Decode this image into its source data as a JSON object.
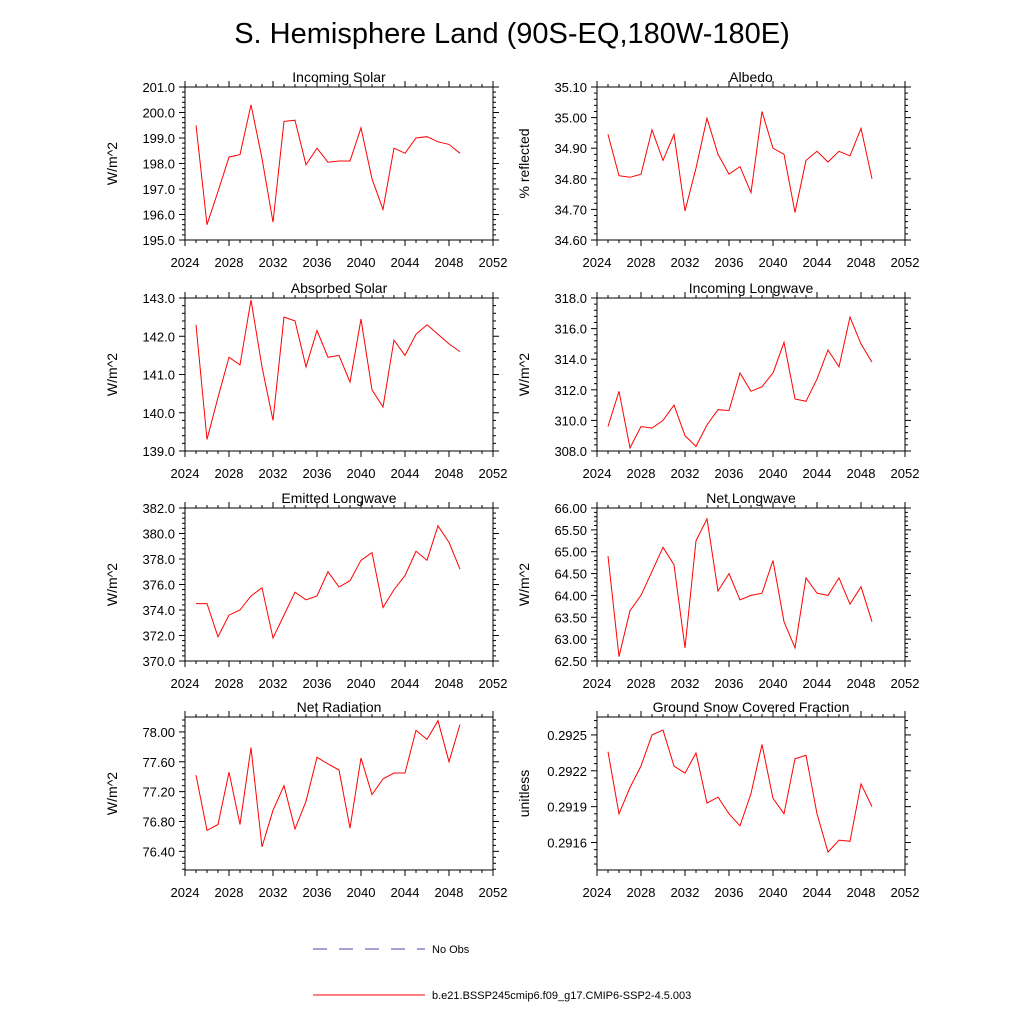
{
  "title": "S. Hemisphere Land (90S-EQ,180W-180E)",
  "legend": {
    "obs_label": "No Obs",
    "obs_color": "#4a4aa8",
    "model_label": "b.e21.BSSP245cmip6.f09_g17.CMIP6-SSP2-4.5.003",
    "model_color": "#ff0000"
  },
  "chart_data": [
    {
      "type": "line",
      "title": "Incoming Solar",
      "ylabel": "W/m^2",
      "xlim": [
        2024,
        2052
      ],
      "ylim": [
        195,
        201
      ],
      "xticks": [
        2024,
        2028,
        2032,
        2036,
        2040,
        2044,
        2048,
        2052
      ],
      "yticks": [
        195.0,
        196.0,
        197.0,
        198.0,
        199.0,
        200.0,
        201.0
      ],
      "ytick_labels": [
        "195.0",
        "196.0",
        "197.0",
        "198.0",
        "199.0",
        "200.0",
        "201.0"
      ],
      "x": [
        2025,
        2026,
        2027,
        2028,
        2029,
        2030,
        2031,
        2032,
        2033,
        2034,
        2035,
        2036,
        2037,
        2038,
        2039,
        2040,
        2041,
        2042,
        2043,
        2044,
        2045,
        2046,
        2047,
        2048,
        2049
      ],
      "values": [
        199.5,
        195.6,
        196.9,
        198.25,
        198.35,
        200.3,
        198.2,
        195.7,
        199.65,
        199.7,
        197.95,
        198.6,
        198.05,
        198.1,
        198.1,
        199.4,
        197.4,
        196.2,
        198.6,
        198.4,
        199.0,
        199.05,
        198.85,
        198.75,
        198.4
      ]
    },
    {
      "type": "line",
      "title": "Albedo",
      "ylabel": "% reflected",
      "xlim": [
        2024,
        2052
      ],
      "ylim": [
        34.6,
        35.1
      ],
      "xticks": [
        2024,
        2028,
        2032,
        2036,
        2040,
        2044,
        2048,
        2052
      ],
      "yticks": [
        34.6,
        34.7,
        34.8,
        34.9,
        35.0,
        35.1
      ],
      "ytick_labels": [
        "34.60",
        "34.70",
        "34.80",
        "34.90",
        "35.00",
        "35.10"
      ],
      "x": [
        2025,
        2026,
        2027,
        2028,
        2029,
        2030,
        2031,
        2032,
        2033,
        2034,
        2035,
        2036,
        2037,
        2038,
        2039,
        2040,
        2041,
        2042,
        2043,
        2044,
        2045,
        2046,
        2047,
        2048,
        2049
      ],
      "values": [
        34.945,
        34.81,
        34.805,
        34.815,
        34.96,
        34.86,
        34.945,
        34.695,
        34.835,
        34.998,
        34.88,
        34.815,
        34.84,
        34.755,
        35.02,
        34.9,
        34.88,
        34.69,
        34.86,
        34.89,
        34.855,
        34.89,
        34.875,
        34.965,
        34.8
      ]
    },
    {
      "type": "line",
      "title": "Absorbed Solar",
      "ylabel": "W/m^2",
      "xlim": [
        2024,
        2052
      ],
      "ylim": [
        139,
        143
      ],
      "xticks": [
        2024,
        2028,
        2032,
        2036,
        2040,
        2044,
        2048,
        2052
      ],
      "yticks": [
        139.0,
        140.0,
        141.0,
        142.0,
        143.0
      ],
      "ytick_labels": [
        "139.0",
        "140.0",
        "141.0",
        "142.0",
        "143.0"
      ],
      "x": [
        2025,
        2026,
        2027,
        2028,
        2029,
        2030,
        2031,
        2032,
        2033,
        2034,
        2035,
        2036,
        2037,
        2038,
        2039,
        2040,
        2041,
        2042,
        2043,
        2044,
        2045,
        2046,
        2047,
        2048,
        2049
      ],
      "values": [
        142.3,
        139.3,
        140.4,
        141.45,
        141.25,
        142.95,
        141.2,
        139.8,
        142.5,
        142.4,
        141.2,
        142.15,
        141.45,
        141.5,
        140.8,
        142.45,
        140.6,
        140.15,
        141.9,
        141.5,
        142.05,
        142.3,
        142.05,
        141.8,
        141.6
      ]
    },
    {
      "type": "line",
      "title": "Incoming Longwave",
      "ylabel": "W/m^2",
      "xlim": [
        2024,
        2052
      ],
      "ylim": [
        308,
        318
      ],
      "xticks": [
        2024,
        2028,
        2032,
        2036,
        2040,
        2044,
        2048,
        2052
      ],
      "yticks": [
        308,
        310,
        312,
        314,
        316,
        318
      ],
      "ytick_labels": [
        "308.0",
        "310.0",
        "312.0",
        "314.0",
        "316.0",
        "318.0"
      ],
      "x": [
        2025,
        2026,
        2027,
        2028,
        2029,
        2030,
        2031,
        2032,
        2033,
        2034,
        2035,
        2036,
        2037,
        2038,
        2039,
        2040,
        2041,
        2042,
        2043,
        2044,
        2045,
        2046,
        2047,
        2048,
        2049
      ],
      "values": [
        309.6,
        311.9,
        308.2,
        309.6,
        309.5,
        310.0,
        311.0,
        309.0,
        308.3,
        309.7,
        310.7,
        310.65,
        313.1,
        311.9,
        312.2,
        313.1,
        315.1,
        311.4,
        311.25,
        312.7,
        314.6,
        313.5,
        316.75,
        315.0,
        313.8
      ]
    },
    {
      "type": "line",
      "title": "Emitted Longwave",
      "ylabel": "W/m^2",
      "xlim": [
        2024,
        2052
      ],
      "ylim": [
        370,
        382
      ],
      "xticks": [
        2024,
        2028,
        2032,
        2036,
        2040,
        2044,
        2048,
        2052
      ],
      "yticks": [
        370,
        372,
        374,
        376,
        378,
        380,
        382
      ],
      "ytick_labels": [
        "370.0",
        "372.0",
        "374.0",
        "376.0",
        "378.0",
        "380.0",
        "382.0"
      ],
      "x": [
        2025,
        2026,
        2027,
        2028,
        2029,
        2030,
        2031,
        2032,
        2033,
        2034,
        2035,
        2036,
        2037,
        2038,
        2039,
        2040,
        2041,
        2042,
        2043,
        2044,
        2045,
        2046,
        2047,
        2048,
        2049
      ],
      "values": [
        374.5,
        374.5,
        371.9,
        373.6,
        374.0,
        375.1,
        375.75,
        371.8,
        373.6,
        375.4,
        374.8,
        375.1,
        377.0,
        375.8,
        376.3,
        377.9,
        378.5,
        374.2,
        375.6,
        376.7,
        378.6,
        377.9,
        380.6,
        379.3,
        377.2
      ]
    },
    {
      "type": "line",
      "title": "Net Longwave",
      "ylabel": "W/m^2",
      "xlim": [
        2024,
        2052
      ],
      "ylim": [
        62.5,
        66.0
      ],
      "xticks": [
        2024,
        2028,
        2032,
        2036,
        2040,
        2044,
        2048,
        2052
      ],
      "yticks": [
        62.5,
        63.0,
        63.5,
        64.0,
        64.5,
        65.0,
        65.5,
        66.0
      ],
      "ytick_labels": [
        "62.50",
        "63.00",
        "63.50",
        "64.00",
        "64.50",
        "65.00",
        "65.50",
        "66.00"
      ],
      "x": [
        2025,
        2026,
        2027,
        2028,
        2029,
        2030,
        2031,
        2032,
        2033,
        2034,
        2035,
        2036,
        2037,
        2038,
        2039,
        2040,
        2041,
        2042,
        2043,
        2044,
        2045,
        2046,
        2047,
        2048,
        2049
      ],
      "values": [
        64.9,
        62.6,
        63.65,
        64.0,
        64.55,
        65.1,
        64.7,
        62.8,
        65.25,
        65.75,
        64.1,
        64.5,
        63.9,
        64.0,
        64.05,
        64.8,
        63.4,
        62.8,
        64.4,
        64.05,
        64.0,
        64.4,
        63.8,
        64.2,
        63.4
      ]
    },
    {
      "type": "line",
      "title": "Net Radiation",
      "ylabel": "W/m^2",
      "xlim": [
        2024,
        2052
      ],
      "ylim": [
        76.15,
        78.2
      ],
      "xticks": [
        2024,
        2028,
        2032,
        2036,
        2040,
        2044,
        2048,
        2052
      ],
      "yticks": [
        76.4,
        76.8,
        77.2,
        77.6,
        78.0
      ],
      "ytick_labels": [
        "76.40",
        "76.80",
        "77.20",
        "77.60",
        "78.00"
      ],
      "x": [
        2025,
        2026,
        2027,
        2028,
        2029,
        2030,
        2031,
        2032,
        2033,
        2034,
        2035,
        2036,
        2037,
        2038,
        2039,
        2040,
        2041,
        2042,
        2043,
        2044,
        2045,
        2046,
        2047,
        2048,
        2049
      ],
      "values": [
        77.42,
        76.68,
        76.76,
        77.46,
        76.76,
        77.79,
        76.46,
        76.95,
        77.28,
        76.7,
        77.07,
        77.66,
        77.57,
        77.49,
        76.71,
        77.65,
        77.16,
        77.37,
        77.45,
        77.45,
        78.02,
        77.9,
        78.15,
        77.6,
        78.1
      ]
    },
    {
      "type": "line",
      "title": "Ground Snow Covered Fraction",
      "ylabel": "unitless",
      "xlim": [
        2024,
        2052
      ],
      "ylim": [
        0.29137,
        0.29265
      ],
      "xticks": [
        2024,
        2028,
        2032,
        2036,
        2040,
        2044,
        2048,
        2052
      ],
      "yticks": [
        0.2916,
        0.2919,
        0.2922,
        0.2925
      ],
      "ytick_labels": [
        "0.2916",
        "0.2919",
        "0.2922",
        "0.2925"
      ],
      "x": [
        2025,
        2026,
        2027,
        2028,
        2029,
        2030,
        2031,
        2032,
        2033,
        2034,
        2035,
        2036,
        2037,
        2038,
        2039,
        2040,
        2041,
        2042,
        2043,
        2044,
        2045,
        2046,
        2047,
        2048,
        2049
      ],
      "values": [
        0.29236,
        0.29184,
        0.29206,
        0.29224,
        0.2925,
        0.29254,
        0.29224,
        0.29218,
        0.29235,
        0.29193,
        0.29198,
        0.29184,
        0.29174,
        0.29201,
        0.29242,
        0.29197,
        0.29184,
        0.2923,
        0.29233,
        0.29184,
        0.29152,
        0.29162,
        0.29161,
        0.29209,
        0.2919
      ]
    }
  ]
}
